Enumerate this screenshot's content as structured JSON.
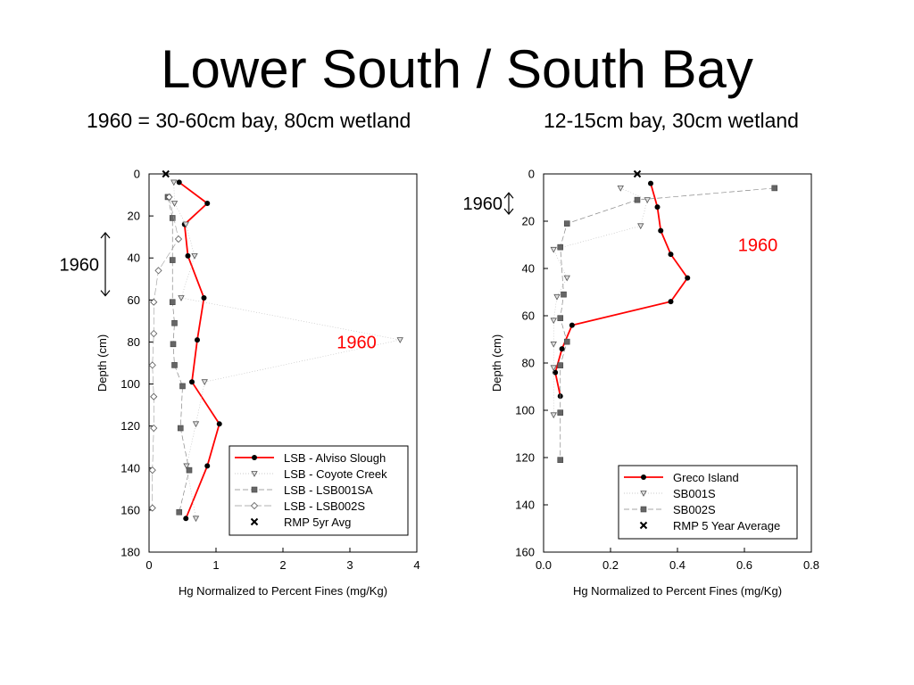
{
  "slide": {
    "title": "Lower South / South Bay",
    "subtitle_left": "1960 = 30-60cm bay, 80cm wetland",
    "subtitle_right": "12-15cm bay, 30cm wetland"
  },
  "chart_data": [
    {
      "type": "line",
      "xlabel": "Hg Normalized to Percent Fines (mg/Kg)",
      "ylabel": "Depth (cm)",
      "xlim": [
        0,
        4
      ],
      "ylim": [
        180,
        0
      ],
      "x_ticks": [
        "0",
        "1",
        "2",
        "3",
        "4"
      ],
      "y_ticks": [
        "0",
        "20",
        "40",
        "60",
        "80",
        "100",
        "120",
        "140",
        "160",
        "180"
      ],
      "legend_position": "bottom-right",
      "annotations": [
        {
          "text": "1960",
          "color": "#000000",
          "kind": "depth-range",
          "y_range": [
            28,
            58
          ]
        },
        {
          "text": "1960",
          "color": "#ff0000",
          "kind": "label",
          "x": 3.1,
          "y": 80
        }
      ],
      "series": [
        {
          "name": "LSB - Alviso Slough",
          "color": "#ff0000",
          "marker": "dot",
          "x": [
            0.45,
            0.87,
            0.53,
            0.58,
            0.82,
            0.72,
            0.64,
            1.05,
            0.87,
            0.55
          ],
          "y": [
            4,
            14,
            24,
            39,
            59,
            79,
            99,
            119,
            139,
            164
          ]
        },
        {
          "name": "LSB - Coyote Creek",
          "color": "#888888",
          "marker": "triangle",
          "x": [
            0.37,
            0.38,
            0.55,
            0.68,
            0.48,
            3.75,
            0.83,
            0.7,
            0.56,
            0.7
          ],
          "y": [
            4,
            14,
            24,
            39,
            59,
            79,
            99,
            119,
            139,
            164
          ]
        },
        {
          "name": "LSB - LSB001SA",
          "color": "#555555",
          "marker": "square",
          "x": [
            0.28,
            0.35,
            0.35,
            0.35,
            0.38,
            0.36,
            0.38,
            0.5,
            0.47,
            0.6,
            0.45
          ],
          "y": [
            11,
            21,
            41,
            61,
            71,
            81,
            91,
            101,
            121,
            141,
            161
          ]
        },
        {
          "name": "LSB - LSB002S",
          "color": "#555555",
          "marker": "diamond",
          "x": [
            0.3,
            0.44,
            0.14,
            0.07,
            0.07,
            0.05,
            0.07,
            0.07,
            0.05,
            0.05
          ],
          "y": [
            11,
            31,
            46,
            61,
            76,
            91,
            106,
            121,
            141,
            159
          ]
        },
        {
          "name": "RMP 5yr Avg",
          "color": "#000000",
          "marker": "x",
          "x": [
            0.25
          ],
          "y": [
            0
          ]
        }
      ]
    },
    {
      "type": "line",
      "xlabel": "Hg Normalized to Percent Fines (mg/Kg)",
      "ylabel": "Depth (cm)",
      "xlim": [
        0,
        0.8
      ],
      "ylim": [
        160,
        0
      ],
      "x_ticks": [
        "0.0",
        "0.2",
        "0.4",
        "0.6",
        "0.8"
      ],
      "y_ticks": [
        "0",
        "20",
        "40",
        "60",
        "80",
        "100",
        "120",
        "140",
        "160"
      ],
      "legend_position": "bottom-right",
      "annotations": [
        {
          "text": "1960",
          "color": "#000000",
          "kind": "depth-range",
          "y_range": [
            8,
            17
          ]
        },
        {
          "text": "1960",
          "color": "#ff0000",
          "kind": "label",
          "x": 0.64,
          "y": 30
        }
      ],
      "series": [
        {
          "name": "Greco Island",
          "color": "#ff0000",
          "marker": "dot",
          "x": [
            0.32,
            0.34,
            0.35,
            0.38,
            0.43,
            0.38,
            0.085,
            0.055,
            0.035,
            0.05
          ],
          "y": [
            4,
            14,
            24,
            34,
            44,
            54,
            64,
            74,
            84,
            94
          ]
        },
        {
          "name": "SB001S",
          "color": "#888888",
          "marker": "triangle",
          "x": [
            0.23,
            0.31,
            0.29,
            0.03,
            0.07,
            0.04,
            0.03,
            0.03,
            0.03,
            0.03
          ],
          "y": [
            6,
            11,
            22,
            32,
            44,
            52,
            62,
            72,
            82,
            102
          ]
        },
        {
          "name": "SB002S",
          "color": "#555555",
          "marker": "square",
          "x": [
            0.69,
            0.28,
            0.07,
            0.05,
            0.06,
            0.05,
            0.07,
            0.05,
            0.05,
            0.05
          ],
          "y": [
            6,
            11,
            21,
            31,
            51,
            61,
            71,
            81,
            101,
            121
          ]
        },
        {
          "name": "RMP 5 Year Average",
          "color": "#000000",
          "marker": "x",
          "x": [
            0.28
          ],
          "y": [
            0
          ]
        }
      ]
    }
  ]
}
